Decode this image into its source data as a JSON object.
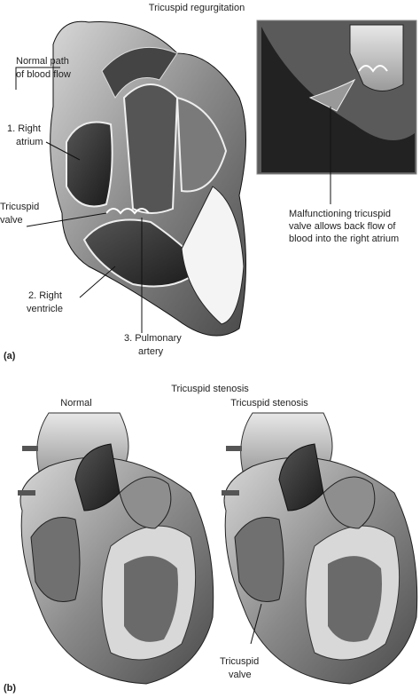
{
  "panel_a": {
    "title": "Tricuspid regurgitation",
    "label": "(a)",
    "normal_path": [
      "Normal path",
      "of blood flow"
    ],
    "right_atrium": [
      "1. Right",
      "atrium"
    ],
    "tricuspid_valve": [
      "Tricuspid",
      "valve"
    ],
    "right_ventricle": [
      "2. Right",
      "ventricle"
    ],
    "pulmonary_artery": [
      "3. Pulmonary",
      "artery"
    ],
    "inset_caption": [
      "Malfunctioning tricuspid",
      "valve allows back flow of",
      "blood into the right atrium"
    ]
  },
  "panel_b": {
    "title": "Tricuspid stenosis",
    "label": "(b)",
    "normal_heading": "Normal",
    "stenosis_heading": "Tricuspid stenosis",
    "tricuspid_valve": [
      "Tricuspid",
      "valve"
    ]
  }
}
